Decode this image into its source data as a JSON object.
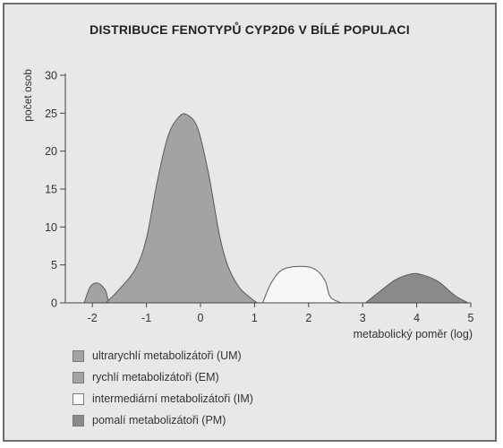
{
  "chart_data": {
    "type": "area",
    "title": "DISTRIBUCE FENOTYPŮ CYP2D6 V BÍLÉ POPULACI",
    "xlabel": "metabolický poměr (log)",
    "ylabel": "počet osob",
    "xlim": [
      -2.5,
      5
    ],
    "ylim": [
      0,
      30
    ],
    "x_ticks": [
      -2,
      -1,
      0,
      1,
      2,
      3,
      4,
      5
    ],
    "y_ticks": [
      0,
      5,
      10,
      15,
      20,
      25,
      30
    ],
    "grid": false,
    "legend_position": "bottom-left",
    "series": [
      {
        "name": "ultrarychlí metabolizátoři (UM)",
        "color": "#a3a3a3",
        "x": [
          -2.15,
          -2.05,
          -1.95,
          -1.85,
          -1.75,
          -1.7
        ],
        "y": [
          0,
          2.0,
          2.6,
          2.4,
          1.5,
          0
        ]
      },
      {
        "name": "rychlí metabolizátoři (EM)",
        "color": "#a3a3a3",
        "x": [
          -1.75,
          -1.5,
          -1.2,
          -1.0,
          -0.8,
          -0.6,
          -0.4,
          -0.25,
          -0.05,
          0.15,
          0.35,
          0.5,
          0.7,
          0.9,
          1.05
        ],
        "y": [
          0,
          1.8,
          4.5,
          8.5,
          16.0,
          22.0,
          24.5,
          24.8,
          23.0,
          17.0,
          9.0,
          5.0,
          2.2,
          0.8,
          0
        ]
      },
      {
        "name": "intermediární metabolizátoři (IM)",
        "color": "#f7f7f7",
        "x": [
          1.15,
          1.3,
          1.5,
          1.8,
          2.1,
          2.3,
          2.4,
          2.6
        ],
        "y": [
          0,
          2.5,
          4.3,
          4.8,
          4.5,
          3.0,
          0.8,
          0
        ]
      },
      {
        "name": "pomalí metabolizátoři (PM)",
        "color": "#8a8a8a",
        "x": [
          3.05,
          3.3,
          3.6,
          3.9,
          4.1,
          4.4,
          4.7,
          4.95
        ],
        "y": [
          0,
          1.4,
          3.0,
          3.8,
          3.7,
          2.8,
          1.0,
          0
        ]
      }
    ]
  }
}
